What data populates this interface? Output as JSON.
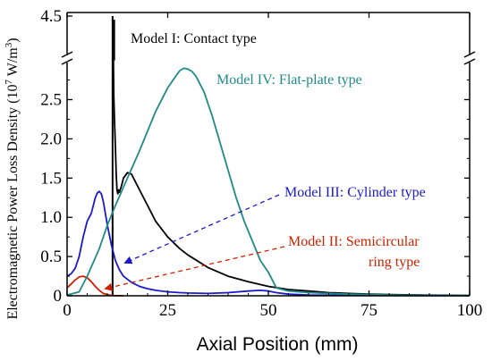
{
  "chart_data": {
    "type": "line",
    "xlabel": "Axial Position (mm)",
    "ylabel": "Electromagnetic Power Loss Density (10^7 W/m^3)",
    "ylabel_prefix": "Electromagnetic Power Loss Density (10",
    "ylabel_exp1": "7",
    "ylabel_mid": " W/m",
    "ylabel_exp2": "3",
    "ylabel_suffix": ")",
    "xlim": [
      0,
      100
    ],
    "ylim": [
      0,
      2.95
    ],
    "broken_y_axis": true,
    "y_break_upper_tick": 4.5,
    "x_ticks": [
      0,
      25,
      50,
      75,
      100
    ],
    "x_tick_labels": [
      "0",
      "25",
      "50",
      "75",
      "100"
    ],
    "y_ticks": [
      0,
      0.5,
      1.0,
      1.5,
      2.0,
      2.5
    ],
    "y_tick_labels": [
      "0",
      "0.5",
      "1.0",
      "1.5",
      "2.0",
      "2.5"
    ],
    "y_top_tick_label": "4.5",
    "grid": false,
    "series": [
      {
        "name": "Model I: Contact type",
        "color": "#000000",
        "x": [
          11.5,
          11.6,
          11.8,
          12.0,
          12.2,
          12.4,
          12.6,
          12.8,
          13.0,
          13.5,
          14.0,
          15.0,
          16.0,
          17.0,
          18.0,
          20.0,
          22.0,
          25.0,
          28.0,
          30.0,
          35.0,
          40.0,
          45.0,
          50.0,
          55.0,
          60.0,
          65.0,
          70.0,
          75.0,
          80.0,
          90.0,
          100.0
        ],
        "y": [
          3.0,
          2.55,
          2.2,
          1.9,
          1.55,
          1.35,
          1.3,
          1.35,
          1.32,
          1.4,
          1.5,
          1.57,
          1.55,
          1.45,
          1.35,
          1.15,
          0.95,
          0.75,
          0.6,
          0.52,
          0.36,
          0.25,
          0.18,
          0.12,
          0.08,
          0.06,
          0.04,
          0.03,
          0.02,
          0.015,
          0.008,
          0.004
        ],
        "spike": {
          "x": 11.3,
          "y_top": 4.5,
          "y_bottom": 0
        }
      },
      {
        "name": "Model II: Semicircular ring type",
        "color": "#cc2200",
        "x": [
          0,
          1,
          2,
          3,
          4,
          5,
          6,
          7,
          8,
          9,
          10,
          11,
          12,
          14
        ],
        "y": [
          0.1,
          0.15,
          0.2,
          0.24,
          0.25,
          0.23,
          0.18,
          0.12,
          0.07,
          0.03,
          0.015,
          0.005,
          0.002,
          0.0
        ]
      },
      {
        "name": "Model III: Cylinder type",
        "color": "#1a1acc",
        "x": [
          0,
          1,
          2,
          3,
          4,
          5,
          6,
          6.5,
          7,
          7.5,
          8,
          8.5,
          9,
          9.5,
          10,
          11,
          12,
          13,
          14,
          16,
          18,
          20,
          22,
          25,
          28,
          30,
          35,
          40,
          45,
          48,
          50,
          52,
          55,
          60,
          70,
          80,
          90,
          100
        ],
        "y": [
          0.25,
          0.28,
          0.35,
          0.5,
          0.75,
          0.95,
          1.05,
          1.15,
          1.25,
          1.31,
          1.33,
          1.3,
          1.2,
          1.05,
          0.9,
          0.65,
          0.45,
          0.33,
          0.25,
          0.17,
          0.12,
          0.09,
          0.07,
          0.05,
          0.04,
          0.035,
          0.03,
          0.04,
          0.06,
          0.07,
          0.06,
          0.04,
          0.02,
          0.01,
          0.005,
          0.003,
          0.002,
          0.001
        ]
      },
      {
        "name": "Model IV: Flat-plate type",
        "color": "#1f8a8a",
        "x": [
          0,
          3,
          5,
          8,
          10,
          12,
          15,
          18,
          20,
          22,
          25,
          27,
          28,
          29,
          30,
          31,
          32,
          34,
          36,
          38,
          40,
          42,
          44,
          46,
          48,
          50,
          52,
          55,
          60,
          65,
          70,
          75,
          80,
          90,
          100
        ],
        "y": [
          0.01,
          0.05,
          0.25,
          0.6,
          0.9,
          1.15,
          1.5,
          1.85,
          2.1,
          2.35,
          2.65,
          2.8,
          2.87,
          2.9,
          2.89,
          2.86,
          2.8,
          2.6,
          2.3,
          1.95,
          1.6,
          1.25,
          0.95,
          0.7,
          0.45,
          0.3,
          0.1,
          0.06,
          0.04,
          0.03,
          0.02,
          0.015,
          0.01,
          0.005,
          0.002
        ]
      }
    ],
    "annotations": [
      {
        "text": "Model I: Contact type",
        "color": "#000000"
      },
      {
        "text": "Model IV: Flat-plate type",
        "color": "#1f8a8a"
      },
      {
        "text": "Model III: Cylinder type",
        "color": "#1a1acc"
      },
      {
        "text": "Model II: Semicircular",
        "color": "#cc2200"
      },
      {
        "text": "ring type",
        "color": "#cc2200"
      }
    ]
  }
}
